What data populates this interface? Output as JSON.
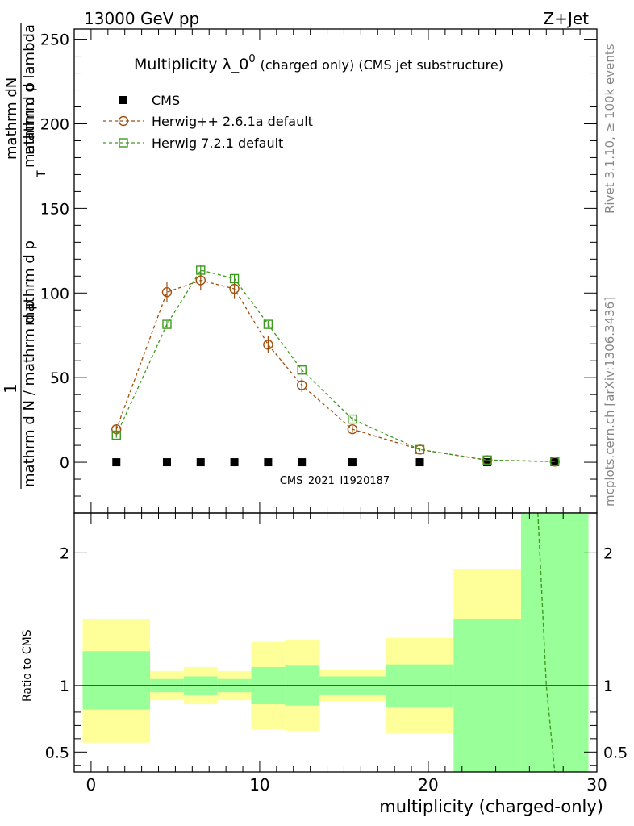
{
  "header": {
    "left_label": "13000 GeV pp",
    "right_label": "Z+Jet"
  },
  "side_labels": {
    "rivet": "Rivet 3.1.10, ≥ 100k events",
    "mcplots": "mcplots.cern.ch [arXiv:1306.3436]"
  },
  "watermark": "CMS_2021_I1920187",
  "colors": {
    "cms": "#000000",
    "herwig_pp": "#a0500f",
    "herwig7": "#3c9b1e",
    "band_green": "#99ff99",
    "band_yellow": "#ffff99"
  },
  "chart_data": [
    {
      "type": "scatter",
      "title": "Multiplicity λ_0",
      "title_sup": "0",
      "subtitle": "(charged only) (CMS jet substructure)",
      "ylabel_numerator": "mathrm dN",
      "ylabel_numerator_one": "1",
      "ylabel_denominator_1": "mathrm d N / mathrm d p",
      "ylabel_denominator_2": "mathrm d p",
      "ylabel_denominator_3": "mathrm d lambda",
      "ylabel_sub_T": "T",
      "ylabel_prefix": "mathrm d p",
      "ylabel_suffix": "mathrm d lambda",
      "ylabel_display": "1 / (mathrm d N / mathrm d p_T) · mathrm d²N / (mathrm d p_T mathrm d lambda)",
      "xlim": [
        -1,
        30
      ],
      "ylim": [
        -30,
        256
      ],
      "yticks": [
        0,
        50,
        100,
        150,
        200,
        250
      ],
      "legend_position": "top-left",
      "x": [
        1.5,
        4.5,
        6.5,
        8.5,
        10.5,
        12.5,
        15.5,
        19.5,
        23.5,
        27.5
      ],
      "series": [
        {
          "name": "CMS",
          "style": "marker",
          "values": [
            0,
            0,
            0,
            0,
            0,
            0,
            0,
            0,
            0,
            0
          ]
        },
        {
          "name": "Herwig++ 2.6.1a default",
          "style": "circle",
          "values": [
            19.5,
            100.5,
            107.5,
            102.5,
            69.5,
            45.5,
            19.5,
            7.5,
            1.2,
            0.4
          ],
          "errors": [
            2.5,
            6,
            6,
            6,
            5,
            4,
            2,
            1,
            0.3,
            0.2
          ]
        },
        {
          "name": "Herwig 7.2.1 default",
          "style": "square",
          "values": [
            16,
            81.5,
            113.5,
            108.5,
            81.5,
            54.5,
            25.5,
            7.5,
            1.3,
            0.5
          ],
          "errors": [
            1.5,
            2,
            3,
            2.5,
            2,
            1.5,
            1.2,
            0.5,
            0.2,
            0.1
          ]
        }
      ]
    },
    {
      "type": "area",
      "ylabel": "Ratio to CMS",
      "xlabel": "multiplicity (charged-only)",
      "xlim": [
        -1,
        30
      ],
      "ylim": [
        0.35,
        2.3
      ],
      "yticks": [
        0.5,
        1,
        2
      ],
      "ytick_labels": [
        "0.5",
        "1",
        "2"
      ],
      "xticks": [
        0,
        10,
        20,
        30
      ],
      "reference_line": 1,
      "bins": [
        {
          "lo": -0.5,
          "hi": 3.5,
          "green": [
            0.82,
            1.26
          ],
          "yellow": [
            0.57,
            1.5
          ]
        },
        {
          "lo": 3.5,
          "hi": 5.5,
          "green": [
            0.95,
            1.05
          ],
          "yellow": [
            0.89,
            1.11
          ]
        },
        {
          "lo": 5.5,
          "hi": 7.5,
          "green": [
            0.93,
            1.07
          ],
          "yellow": [
            0.86,
            1.14
          ]
        },
        {
          "lo": 7.5,
          "hi": 9.5,
          "green": [
            0.95,
            1.05
          ],
          "yellow": [
            0.89,
            1.11
          ]
        },
        {
          "lo": 9.5,
          "hi": 11.5,
          "green": [
            0.86,
            1.14
          ],
          "yellow": [
            0.67,
            1.33
          ]
        },
        {
          "lo": 11.5,
          "hi": 13.5,
          "green": [
            0.85,
            1.15
          ],
          "yellow": [
            0.66,
            1.34
          ]
        },
        {
          "lo": 13.5,
          "hi": 17.5,
          "green": [
            0.93,
            1.07
          ],
          "yellow": [
            0.88,
            1.12
          ]
        },
        {
          "lo": 17.5,
          "hi": 21.5,
          "green": [
            0.84,
            1.16
          ],
          "yellow": [
            0.64,
            1.36
          ]
        },
        {
          "lo": 21.5,
          "hi": 25.5,
          "green": [
            0.35,
            1.5
          ],
          "yellow": [
            0.58,
            1.88
          ]
        },
        {
          "lo": 25.5,
          "hi": 29.5,
          "green": [
            0.35,
            2.3
          ],
          "yellow": [
            0.35,
            2.3
          ]
        }
      ],
      "series": [
        {
          "name": "Herwig 7.2.1 default",
          "x": [
            26.5,
            27.0,
            27.5
          ],
          "values": [
            2.3,
            1.0,
            0.35
          ]
        }
      ]
    }
  ]
}
